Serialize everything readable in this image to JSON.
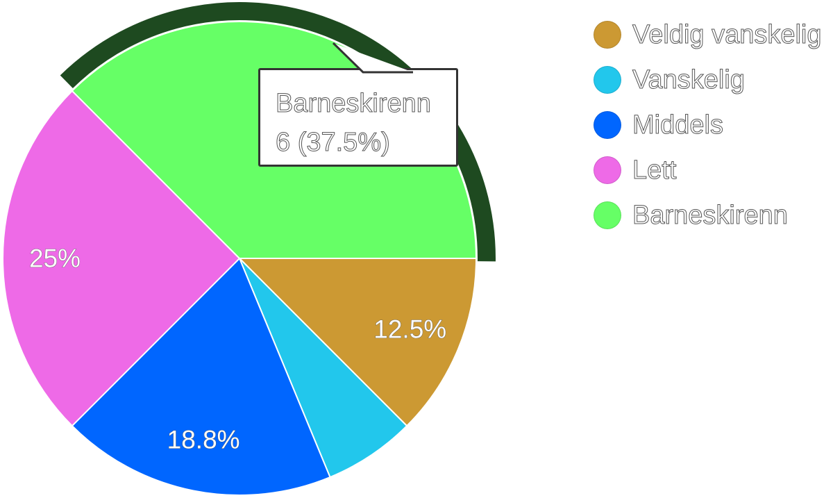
{
  "chart_data": {
    "type": "pie",
    "title": "",
    "slices": [
      {
        "label": "Veldig vanskelig",
        "value": 2,
        "percent_label": "12.5%",
        "color": "#CC9933"
      },
      {
        "label": "Vanskelig",
        "value": 1,
        "percent_label": "",
        "color": "#22C7EC"
      },
      {
        "label": "Middels",
        "value": 3,
        "percent_label": "18.8%",
        "color": "#0066FF"
      },
      {
        "label": "Lett",
        "value": 4,
        "percent_label": "25%",
        "color": "#EE6AE7"
      },
      {
        "label": "Barneskirenn",
        "value": 6,
        "percent_label": "",
        "color": "#66FF66"
      }
    ],
    "highlight_color": "#1E4A20",
    "highlighted_slice": "Barneskirenn",
    "legend_position": "right",
    "tooltip": {
      "title": "Barneskirenn",
      "value_text": "6 (37.5%)"
    }
  }
}
